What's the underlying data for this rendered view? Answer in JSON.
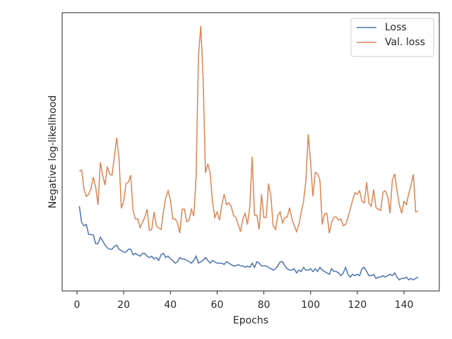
{
  "chart_data": {
    "type": "line",
    "xlabel": "Epochs",
    "ylabel": "Negative log-likelihood",
    "x": [
      1,
      2,
      3,
      4,
      5,
      6,
      7,
      8,
      9,
      10,
      11,
      12,
      13,
      14,
      15,
      16,
      17,
      18,
      19,
      20,
      21,
      22,
      23,
      24,
      25,
      26,
      27,
      28,
      29,
      30,
      31,
      32,
      33,
      34,
      35,
      36,
      37,
      38,
      39,
      40,
      41,
      42,
      43,
      44,
      45,
      46,
      47,
      48,
      49,
      50,
      51,
      52,
      53,
      54,
      55,
      56,
      57,
      58,
      59,
      60,
      61,
      62,
      63,
      64,
      65,
      66,
      67,
      68,
      69,
      70,
      71,
      72,
      73,
      74,
      75,
      76,
      77,
      78,
      79,
      80,
      81,
      82,
      83,
      84,
      85,
      86,
      87,
      88,
      89,
      90,
      91,
      92,
      93,
      94,
      95,
      96,
      97,
      98,
      99,
      100,
      101,
      102,
      103,
      104,
      105,
      106,
      107,
      108,
      109,
      110,
      111,
      112,
      113,
      114,
      115,
      116,
      117,
      118,
      119,
      120,
      121,
      122,
      123,
      124,
      125,
      126,
      127,
      128,
      129,
      130,
      131,
      132,
      133,
      134,
      135,
      136,
      137,
      138,
      139,
      140,
      141,
      142,
      143,
      144,
      145,
      146
    ],
    "series": [
      {
        "name": "Loss",
        "color": "#4c72b0",
        "values": [
          30.5,
          24.6,
          23.4,
          23.9,
          20.3,
          20.3,
          20.1,
          17,
          17,
          19.3,
          18,
          16.5,
          15.5,
          15,
          15,
          16,
          16.5,
          15,
          14.5,
          14,
          14,
          15,
          15,
          13,
          13.5,
          13,
          12.5,
          13.5,
          13.5,
          12.5,
          12,
          12.5,
          11.5,
          12,
          11,
          13,
          13.5,
          12,
          12.5,
          11.5,
          11,
          10,
          10.5,
          12,
          11.5,
          11.5,
          11,
          10.5,
          10,
          11,
          12.5,
          10,
          10.5,
          11,
          12,
          11,
          10,
          11,
          10.5,
          10,
          10,
          10,
          9.5,
          10.5,
          10,
          9.5,
          9,
          9,
          9.5,
          9,
          9,
          8.5,
          9,
          8.5,
          10,
          8.5,
          10.5,
          10,
          9,
          9,
          9,
          8.5,
          8,
          7.5,
          8,
          9,
          10.5,
          10.5,
          9,
          8,
          7.5,
          7.5,
          8,
          6.5,
          7.5,
          7,
          8.5,
          7.5,
          7.5,
          8,
          7,
          8,
          7,
          8.5,
          7.5,
          7,
          6.5,
          6,
          8,
          7,
          7,
          6.5,
          5.5,
          6.5,
          8.5,
          6,
          5,
          6,
          5.5,
          6,
          5.5,
          8,
          8.5,
          7,
          5.5,
          5.5,
          6,
          4.5,
          5,
          5,
          5.5,
          5,
          5.5,
          6,
          5.5,
          6.5,
          5,
          4,
          4.5,
          4.5,
          5,
          4,
          4.5,
          4,
          4.5,
          5
        ]
      },
      {
        "name": "Val. loss",
        "color": "#dd8452",
        "values": [
          43.1,
          43.4,
          36.5,
          34,
          34.8,
          36.8,
          40.9,
          37.3,
          31,
          46.2,
          41.6,
          38.1,
          44.7,
          41.9,
          41.6,
          48.2,
          55.1,
          47.5,
          29.7,
          32.2,
          38.6,
          39.1,
          41.6,
          28.9,
          25.9,
          25.9,
          22.8,
          24.6,
          26.4,
          29.4,
          21.8,
          22.1,
          28.4,
          23.4,
          22.6,
          22.1,
          28.4,
          33.5,
          36,
          32.7,
          25.9,
          25.9,
          24.6,
          20.8,
          29.4,
          29.4,
          24.9,
          25.4,
          29.4,
          26.9,
          41.1,
          84.3,
          95.2,
          76.6,
          42.4,
          45.7,
          42.4,
          32.2,
          26.4,
          28.4,
          25.4,
          31,
          34.8,
          31,
          31.7,
          30.5,
          27.2,
          26.4,
          23.9,
          21.3,
          25.9,
          27.9,
          23.9,
          30.5,
          48.2,
          27.2,
          27.2,
          22.1,
          34.8,
          26.4,
          26.4,
          38.6,
          34,
          23.4,
          22.1,
          27.2,
          28.4,
          24.4,
          26.4,
          26.6,
          29.9,
          25.9,
          23.4,
          21.3,
          23.9,
          28.4,
          32.2,
          39.8,
          56.3,
          46.2,
          34,
          42.6,
          42.1,
          39.8,
          23.9,
          27.7,
          27.9,
          20.8,
          24.6,
          26.6,
          26.6,
          25.4,
          25.9,
          23.4,
          23.9,
          26.4,
          29.4,
          32.7,
          35.3,
          34.8,
          36,
          32.2,
          31.7,
          39.1,
          31.5,
          30.5,
          36.5,
          29.9,
          29.4,
          28.9,
          35.5,
          36,
          34,
          27.9,
          39.8,
          42.1,
          36,
          31,
          27.9,
          32.2,
          31,
          34.8,
          38.1,
          41.9,
          28.4,
          28.7
        ]
      }
    ],
    "xlim": [
      -6.35,
      155.1
    ],
    "xticks": [
      0,
      20,
      40,
      60,
      80,
      100,
      120,
      140
    ],
    "ylim": [
      0,
      100
    ],
    "legend": "upper right"
  }
}
